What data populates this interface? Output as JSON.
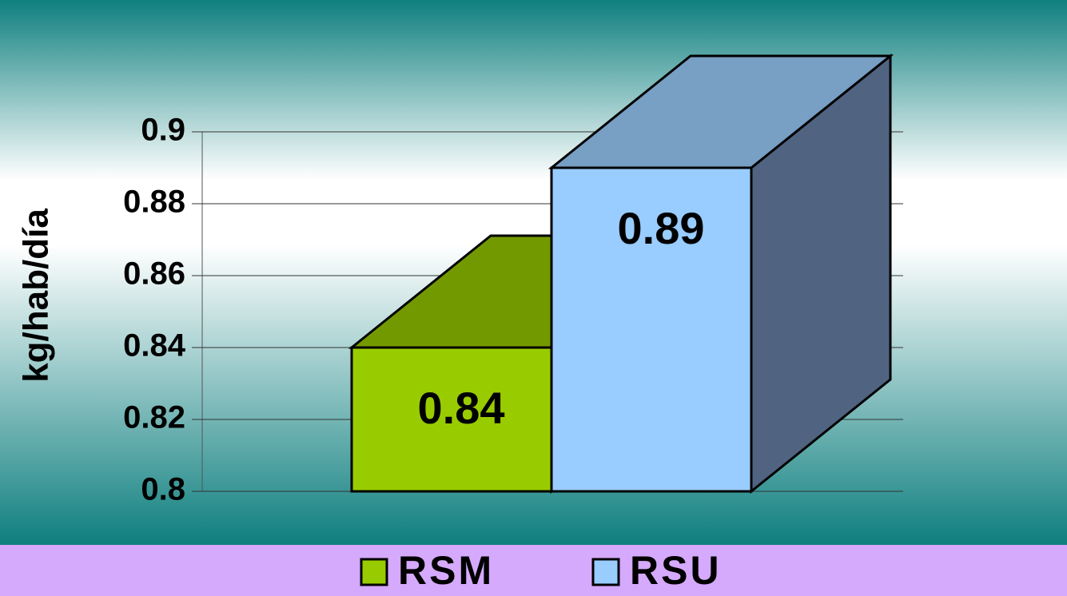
{
  "chart_data": {
    "type": "bar3d",
    "y_label": "kg/hab/día",
    "categories": [
      null
    ],
    "series": [
      {
        "name": "RSM",
        "color": "#99cc00",
        "top_color": "#739900",
        "side_color": "#5c7a00",
        "values": [
          0.84
        ]
      },
      {
        "name": "RSU",
        "color": "#99ccff",
        "top_color": "#789fc4",
        "side_color": "#506482",
        "values": [
          0.89
        ]
      }
    ],
    "ylim": [
      0.8,
      0.9
    ],
    "yticks": [
      0.8,
      0.82,
      0.84,
      0.86,
      0.88,
      0.9
    ],
    "grid": true,
    "legend": "bottom"
  }
}
